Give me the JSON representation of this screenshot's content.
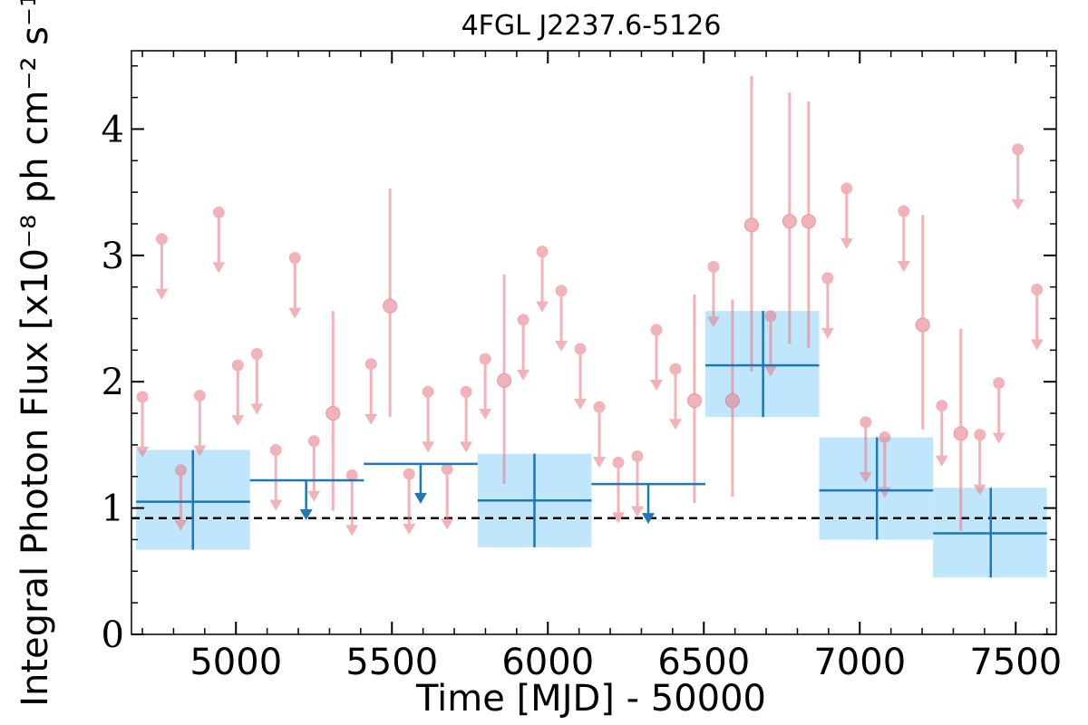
{
  "chart_data": {
    "type": "scatter",
    "title": "4FGL J2237.6-5126",
    "xlabel": "Time [MJD] - 50000",
    "ylabel": "Integral Photon Flux [x10⁻⁸ ph cm⁻² s⁻¹]",
    "xlim": [
      4665,
      7630
    ],
    "ylim": [
      0,
      4.62
    ],
    "x_ticks": [
      5000,
      5500,
      6000,
      6500,
      7000,
      7500
    ],
    "y_ticks": [
      0,
      1,
      2,
      3,
      4
    ],
    "x_tick_labels": [
      "5000",
      "5500",
      "6000",
      "6500",
      "7000",
      "7500"
    ],
    "y_tick_labels": [
      "0",
      "1",
      "2",
      "3",
      "4"
    ],
    "grid": false,
    "reference_level": 0.92,
    "colors": {
      "short_bins": "#e8808a",
      "long_bins": "#1f77b4",
      "long_bins_fill": "#bfe6fb",
      "reference_line": "#000000"
    },
    "long_bins": [
      {
        "x": 4862,
        "x_lo": 4680,
        "x_hi": 5045,
        "y": 1.05,
        "y_lo": 0.67,
        "y_hi": 1.46,
        "upper_limit": false
      },
      {
        "x": 5225,
        "x_lo": 5045,
        "x_hi": 5410,
        "y": 1.22,
        "upper_limit": true
      },
      {
        "x": 5592,
        "x_lo": 5410,
        "x_hi": 5775,
        "y": 1.35,
        "upper_limit": true
      },
      {
        "x": 5957,
        "x_lo": 5775,
        "x_hi": 6140,
        "y": 1.06,
        "y_lo": 0.69,
        "y_hi": 1.43,
        "upper_limit": false
      },
      {
        "x": 6322,
        "x_lo": 6140,
        "x_hi": 6505,
        "y": 1.19,
        "upper_limit": true
      },
      {
        "x": 6690,
        "x_lo": 6505,
        "x_hi": 6870,
        "y": 2.13,
        "y_lo": 1.72,
        "y_hi": 2.56,
        "upper_limit": false
      },
      {
        "x": 7055,
        "x_lo": 6870,
        "x_hi": 7235,
        "y": 1.14,
        "y_lo": 0.75,
        "y_hi": 1.56,
        "upper_limit": false
      },
      {
        "x": 7420,
        "x_lo": 7235,
        "x_hi": 7600,
        "y": 0.8,
        "y_lo": 0.45,
        "y_hi": 1.16,
        "upper_limit": false
      }
    ],
    "short_bins": [
      {
        "x": 4700,
        "y": 1.88,
        "upper_limit": true
      },
      {
        "x": 4762,
        "y": 3.13,
        "upper_limit": true
      },
      {
        "x": 4823,
        "y": 1.3,
        "upper_limit": true
      },
      {
        "x": 4884,
        "y": 1.89,
        "upper_limit": true
      },
      {
        "x": 4945,
        "y": 3.34,
        "upper_limit": true
      },
      {
        "x": 5006,
        "y": 2.13,
        "upper_limit": true
      },
      {
        "x": 5067,
        "y": 2.22,
        "upper_limit": true
      },
      {
        "x": 5128,
        "y": 1.46,
        "upper_limit": true
      },
      {
        "x": 5189,
        "y": 2.98,
        "upper_limit": true
      },
      {
        "x": 5250,
        "y": 1.53,
        "upper_limit": true
      },
      {
        "x": 5311,
        "y": 1.75,
        "y_lo": 0.98,
        "y_hi": 2.56,
        "upper_limit": false
      },
      {
        "x": 5372,
        "y": 1.26,
        "upper_limit": true
      },
      {
        "x": 5433,
        "y": 2.14,
        "upper_limit": true
      },
      {
        "x": 5494,
        "y": 2.6,
        "y_lo": 1.72,
        "y_hi": 3.53,
        "upper_limit": false
      },
      {
        "x": 5555,
        "y": 1.27,
        "upper_limit": true
      },
      {
        "x": 5616,
        "y": 1.92,
        "upper_limit": true
      },
      {
        "x": 5677,
        "y": 1.31,
        "upper_limit": true
      },
      {
        "x": 5738,
        "y": 1.92,
        "upper_limit": true
      },
      {
        "x": 5799,
        "y": 2.18,
        "upper_limit": true
      },
      {
        "x": 5860,
        "y": 2.01,
        "y_lo": 1.19,
        "y_hi": 2.85,
        "upper_limit": false
      },
      {
        "x": 5921,
        "y": 2.49,
        "upper_limit": true
      },
      {
        "x": 5982,
        "y": 3.03,
        "upper_limit": true
      },
      {
        "x": 6043,
        "y": 2.72,
        "upper_limit": true
      },
      {
        "x": 6104,
        "y": 2.26,
        "upper_limit": true
      },
      {
        "x": 6165,
        "y": 1.8,
        "upper_limit": true
      },
      {
        "x": 6226,
        "y": 1.36,
        "upper_limit": true
      },
      {
        "x": 6287,
        "y": 1.41,
        "upper_limit": true
      },
      {
        "x": 6348,
        "y": 2.41,
        "upper_limit": true
      },
      {
        "x": 6409,
        "y": 2.1,
        "upper_limit": true
      },
      {
        "x": 6470,
        "y": 1.85,
        "y_lo": 1.04,
        "y_hi": 2.69,
        "upper_limit": false
      },
      {
        "x": 6531,
        "y": 2.91,
        "upper_limit": true
      },
      {
        "x": 6592,
        "y": 1.85,
        "y_lo": 1.09,
        "y_hi": 2.65,
        "upper_limit": false
      },
      {
        "x": 6653,
        "y": 3.24,
        "y_lo": 2.08,
        "y_hi": 4.42,
        "upper_limit": false
      },
      {
        "x": 6714,
        "y": 2.52,
        "upper_limit": true
      },
      {
        "x": 6775,
        "y": 3.27,
        "y_lo": 2.3,
        "y_hi": 4.29,
        "upper_limit": false
      },
      {
        "x": 6836,
        "y": 3.27,
        "y_lo": 2.27,
        "y_hi": 4.22,
        "upper_limit": false
      },
      {
        "x": 6897,
        "y": 2.82,
        "upper_limit": true
      },
      {
        "x": 6958,
        "y": 3.53,
        "upper_limit": true
      },
      {
        "x": 7019,
        "y": 1.68,
        "upper_limit": true
      },
      {
        "x": 7080,
        "y": 1.56,
        "upper_limit": true
      },
      {
        "x": 7141,
        "y": 3.35,
        "upper_limit": true
      },
      {
        "x": 7202,
        "y": 2.45,
        "y_lo": 1.62,
        "y_hi": 3.32,
        "upper_limit": false
      },
      {
        "x": 7263,
        "y": 1.81,
        "upper_limit": true
      },
      {
        "x": 7324,
        "y": 1.59,
        "y_lo": 0.82,
        "y_hi": 2.42,
        "upper_limit": false
      },
      {
        "x": 7385,
        "y": 1.58,
        "upper_limit": true
      },
      {
        "x": 7446,
        "y": 1.99,
        "upper_limit": true
      },
      {
        "x": 7507,
        "y": 3.84,
        "upper_limit": true
      },
      {
        "x": 7568,
        "y": 2.73,
        "upper_limit": true
      }
    ]
  }
}
